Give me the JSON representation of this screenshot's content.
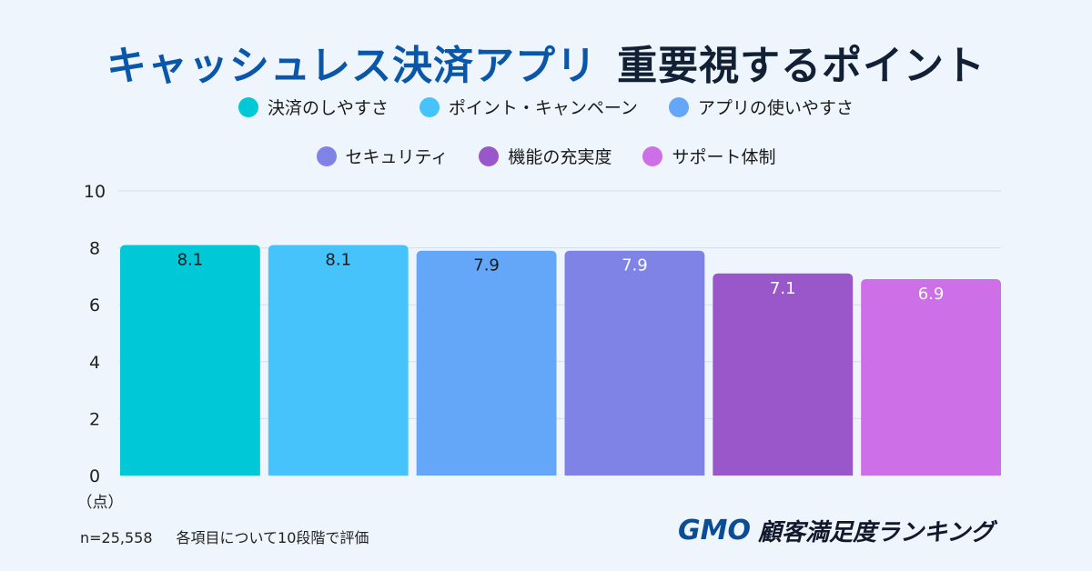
{
  "title": {
    "part1": "キャッシュレス決済アプリ",
    "part2": "重要視するポイント"
  },
  "chart_data": {
    "type": "bar",
    "categories": [
      "決済のしやすさ",
      "ポイント・キャンペーン",
      "アプリの使いやすさ",
      "セキュリティ",
      "機能の充実度",
      "サポート体制"
    ],
    "values": [
      8.1,
      8.1,
      7.9,
      7.9,
      7.1,
      6.9
    ],
    "data_labels": [
      "8.1",
      "8.1",
      "7.9",
      "7.9",
      "7.1",
      "6.9"
    ],
    "colors": [
      "#00c8d7",
      "#47c3fb",
      "#64a6f7",
      "#8083e6",
      "#9a57c9",
      "#cd6fe6"
    ],
    "label_colors": [
      "#1a1a1a",
      "#1a1a1a",
      "#1a1a1a",
      "#ffffff",
      "#ffffff",
      "#ffffff"
    ],
    "ylim": [
      0,
      10
    ],
    "yticks": [
      "0",
      "2",
      "4",
      "6",
      "8",
      "10"
    ],
    "ylabel": "（点）",
    "grid": true,
    "legend_position": "top"
  },
  "footer": {
    "n": "n=25,558",
    "note": "各項目について10段階で評価"
  },
  "logo": {
    "brand": "GMO",
    "text": "顧客満足度ランキング"
  }
}
